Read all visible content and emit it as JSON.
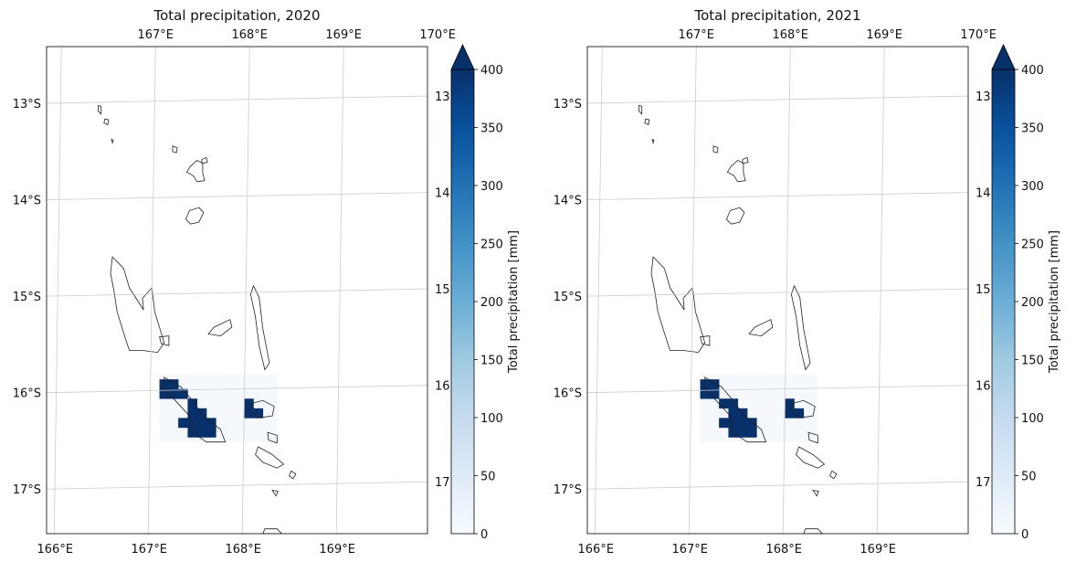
{
  "chart_data": [
    {
      "type": "heatmap",
      "title": "Total precipitation, 2020",
      "x_ticks": [
        "166°E",
        "167°E",
        "168°E",
        "169°E"
      ],
      "x_top_ticks": [
        "167°E",
        "168°E",
        "169°E",
        "170°E"
      ],
      "y_ticks": [
        "13°S",
        "14°S",
        "15°S",
        "16°S",
        "17°S"
      ],
      "y_right_ticks": [
        "13",
        "14",
        "15",
        "16",
        "17"
      ],
      "colorbar": {
        "label": "Total precipitation [mm]",
        "ticks": [
          "0",
          "50",
          "100",
          "150",
          "200",
          "250",
          "300",
          "350",
          "400"
        ],
        "vmin": 0,
        "vmax": 400,
        "extend": "max",
        "cmap": "Blues"
      },
      "lon_range": [
        165.9,
        169.95
      ],
      "lat_range": [
        -17.5,
        -12.45
      ],
      "grid": true,
      "cells": [
        {
          "lon": 167.1,
          "lat": -15.9,
          "value": 420
        },
        {
          "lon": 167.2,
          "lat": -15.9,
          "value": 420
        },
        {
          "lon": 167.1,
          "lat": -16.0,
          "value": 420
        },
        {
          "lon": 167.2,
          "lat": -16.0,
          "value": 420
        },
        {
          "lon": 167.3,
          "lat": -16.0,
          "value": 420
        },
        {
          "lon": 167.4,
          "lat": -16.1,
          "value": 420
        },
        {
          "lon": 167.4,
          "lat": -16.2,
          "value": 420
        },
        {
          "lon": 167.5,
          "lat": -16.2,
          "value": 420
        },
        {
          "lon": 167.3,
          "lat": -16.3,
          "value": 420
        },
        {
          "lon": 167.4,
          "lat": -16.3,
          "value": 420
        },
        {
          "lon": 167.5,
          "lat": -16.3,
          "value": 420
        },
        {
          "lon": 167.6,
          "lat": -16.3,
          "value": 420
        },
        {
          "lon": 167.4,
          "lat": -16.4,
          "value": 420
        },
        {
          "lon": 167.5,
          "lat": -16.4,
          "value": 420
        },
        {
          "lon": 167.6,
          "lat": -16.4,
          "value": 420
        },
        {
          "lon": 168.0,
          "lat": -16.1,
          "value": 420
        },
        {
          "lon": 168.0,
          "lat": -16.2,
          "value": 420
        },
        {
          "lon": 168.1,
          "lat": -16.2,
          "value": 420
        }
      ],
      "background_value": 5
    },
    {
      "type": "heatmap",
      "title": "Total precipitation, 2021",
      "x_ticks": [
        "166°E",
        "167°E",
        "168°E",
        "169°E"
      ],
      "x_top_ticks": [
        "167°E",
        "168°E",
        "169°E",
        "170°E"
      ],
      "y_ticks": [
        "13°S",
        "14°S",
        "15°S",
        "16°S",
        "17°S"
      ],
      "y_right_ticks": [
        "13",
        "14",
        "15",
        "16",
        "17"
      ],
      "colorbar": {
        "label": "Total precipitation [mm]",
        "ticks": [
          "0",
          "50",
          "100",
          "150",
          "200",
          "250",
          "300",
          "350",
          "400"
        ],
        "vmin": 0,
        "vmax": 400,
        "extend": "max",
        "cmap": "Blues"
      },
      "lon_range": [
        165.9,
        169.95
      ],
      "lat_range": [
        -17.5,
        -12.45
      ],
      "grid": true,
      "cells": [
        {
          "lon": 167.1,
          "lat": -15.9,
          "value": 420
        },
        {
          "lon": 167.2,
          "lat": -15.9,
          "value": 420
        },
        {
          "lon": 167.1,
          "lat": -16.0,
          "value": 420
        },
        {
          "lon": 167.2,
          "lat": -16.0,
          "value": 420
        },
        {
          "lon": 167.3,
          "lat": -16.1,
          "value": 420
        },
        {
          "lon": 167.4,
          "lat": -16.1,
          "value": 420
        },
        {
          "lon": 167.4,
          "lat": -16.2,
          "value": 420
        },
        {
          "lon": 167.5,
          "lat": -16.2,
          "value": 420
        },
        {
          "lon": 167.3,
          "lat": -16.3,
          "value": 420
        },
        {
          "lon": 167.4,
          "lat": -16.3,
          "value": 420
        },
        {
          "lon": 167.5,
          "lat": -16.3,
          "value": 420
        },
        {
          "lon": 167.6,
          "lat": -16.3,
          "value": 420
        },
        {
          "lon": 167.4,
          "lat": -16.4,
          "value": 420
        },
        {
          "lon": 167.5,
          "lat": -16.4,
          "value": 420
        },
        {
          "lon": 167.6,
          "lat": -16.4,
          "value": 420
        },
        {
          "lon": 168.0,
          "lat": -16.1,
          "value": 420
        },
        {
          "lon": 168.0,
          "lat": -16.2,
          "value": 420
        },
        {
          "lon": 168.1,
          "lat": -16.2,
          "value": 420
        }
      ],
      "background_value": 5
    }
  ]
}
